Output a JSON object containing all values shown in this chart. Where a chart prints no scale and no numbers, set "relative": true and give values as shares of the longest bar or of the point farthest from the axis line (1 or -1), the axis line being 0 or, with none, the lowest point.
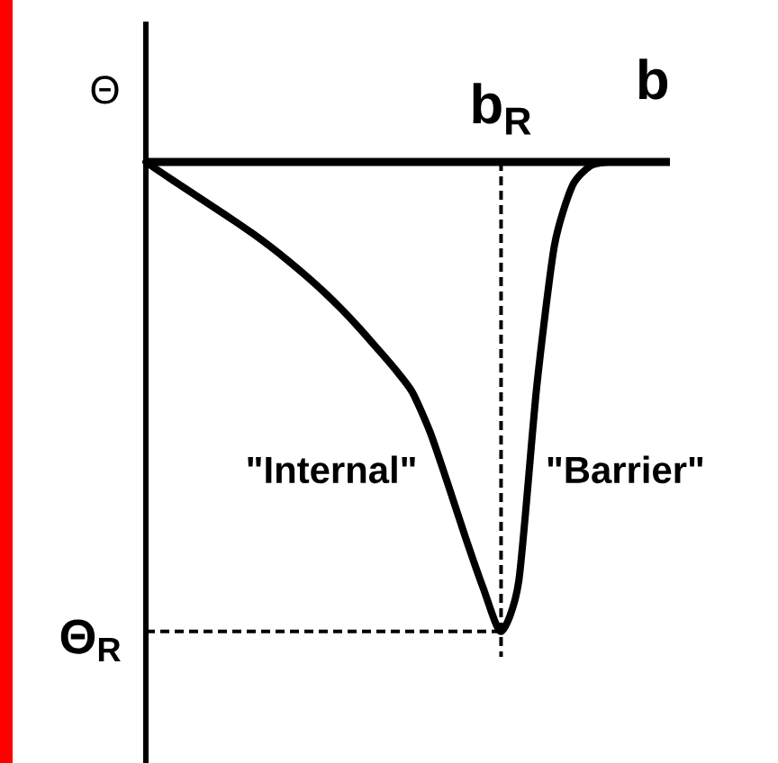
{
  "chart_data": {
    "type": "line",
    "xlabel": "b",
    "ylabel": "Θ",
    "relative": true,
    "color": "#000000",
    "marker": "none",
    "line_style": "solid",
    "categories": [
      null,
      null,
      null,
      null,
      null,
      null,
      null,
      null,
      null,
      null,
      null,
      null,
      null,
      null,
      null,
      null,
      null,
      null,
      null,
      null,
      null,
      null,
      null,
      null,
      null,
      null,
      null
    ],
    "values": [
      0,
      -0.026,
      -0.051,
      -0.076,
      -0.101,
      -0.126,
      -0.152,
      -0.18,
      -0.21,
      -0.242,
      -0.276,
      -0.313,
      -0.353,
      -0.396,
      -0.44,
      -0.49,
      -0.575,
      -0.685,
      -0.8,
      -0.908,
      -1,
      -0.892,
      -0.482,
      -0.179,
      -0.052,
      -0.009,
      0
    ],
    "ref_lines": [
      {
        "axis": "y",
        "value": -1,
        "label": "Θ$_{R}$",
        "line_style": "dashed"
      }
    ],
    "annotations": [
      "\"Internal\"",
      "\"Barrier\"",
      "b$_{R}$"
    ]
  }
}
